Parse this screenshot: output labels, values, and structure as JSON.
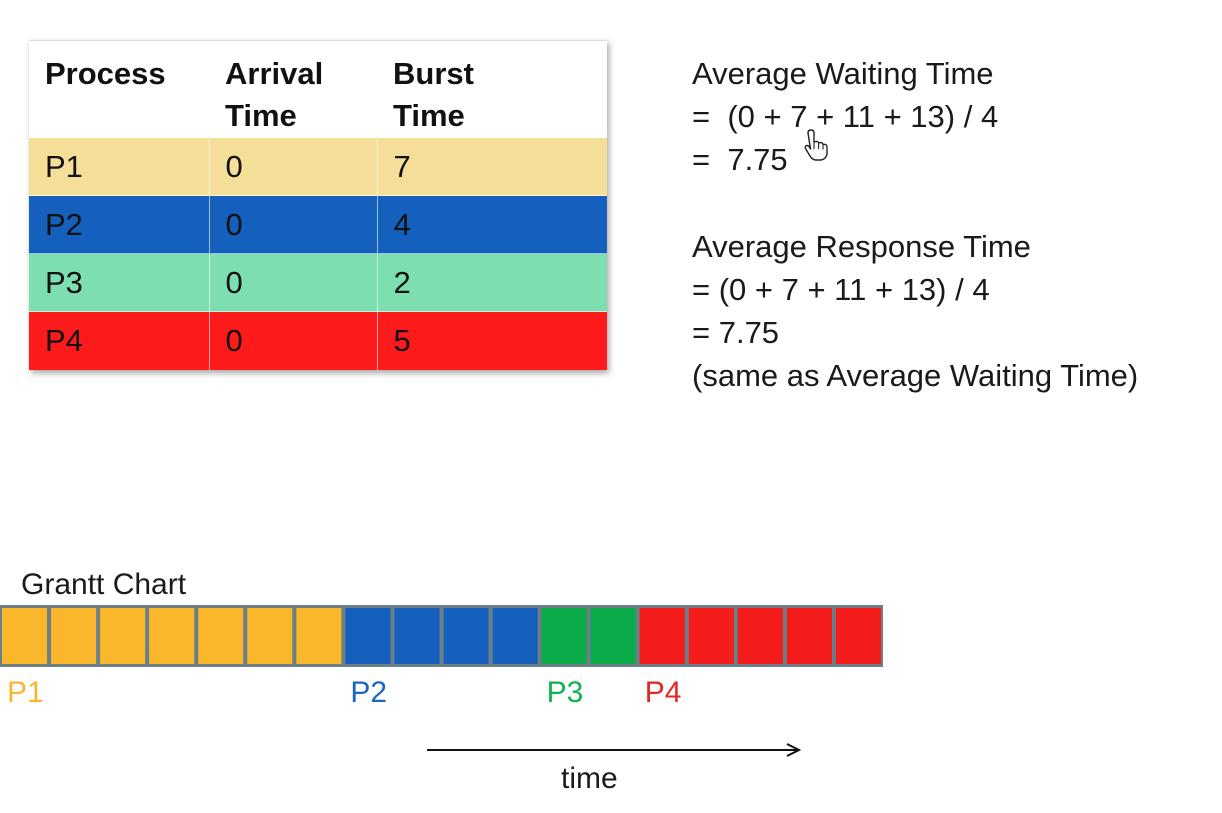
{
  "table": {
    "headers": [
      [
        "Process"
      ],
      [
        "Arrival",
        "Time"
      ],
      [
        "Burst",
        "Time"
      ]
    ],
    "rows": [
      {
        "process": "P1",
        "arrival": "0",
        "burst": "7",
        "color": "#f5de98"
      },
      {
        "process": "P2",
        "arrival": "0",
        "burst": "4",
        "color": "#1560bd"
      },
      {
        "process": "P3",
        "arrival": "0",
        "burst": "2",
        "color": "#7ddfb0"
      },
      {
        "process": "P4",
        "arrival": "0",
        "burst": "5",
        "color": "#fd1a1a"
      }
    ]
  },
  "waiting": {
    "title": "Average Waiting Time",
    "formula": "=  (0 + 7 + 11 + 13) / 4",
    "result": "=  7.75"
  },
  "response": {
    "title": "Average Response Time",
    "formula": "= (0 + 7 + 11 + 13) / 4",
    "result": "= 7.75",
    "note": "(same as Average Waiting Time)"
  },
  "gantt": {
    "title": "Grantt Chart",
    "segments": [
      {
        "label": "P1",
        "units": 7,
        "color": "#fbb72b",
        "label_color": "#f7b733"
      },
      {
        "label": "P2",
        "units": 4,
        "color": "#1560bd",
        "label_color": "#1a66c2"
      },
      {
        "label": "P3",
        "units": 2,
        "color": "#0bab49",
        "label_color": "#10b24f"
      },
      {
        "label": "P4",
        "units": 5,
        "color": "#f51c1c",
        "label_color": "#e32626"
      }
    ],
    "border_color": "#6a7f86",
    "axis_label": "time"
  },
  "icons": {
    "cursor": "hand-pointer-icon",
    "arrow": "right-arrow-icon"
  }
}
